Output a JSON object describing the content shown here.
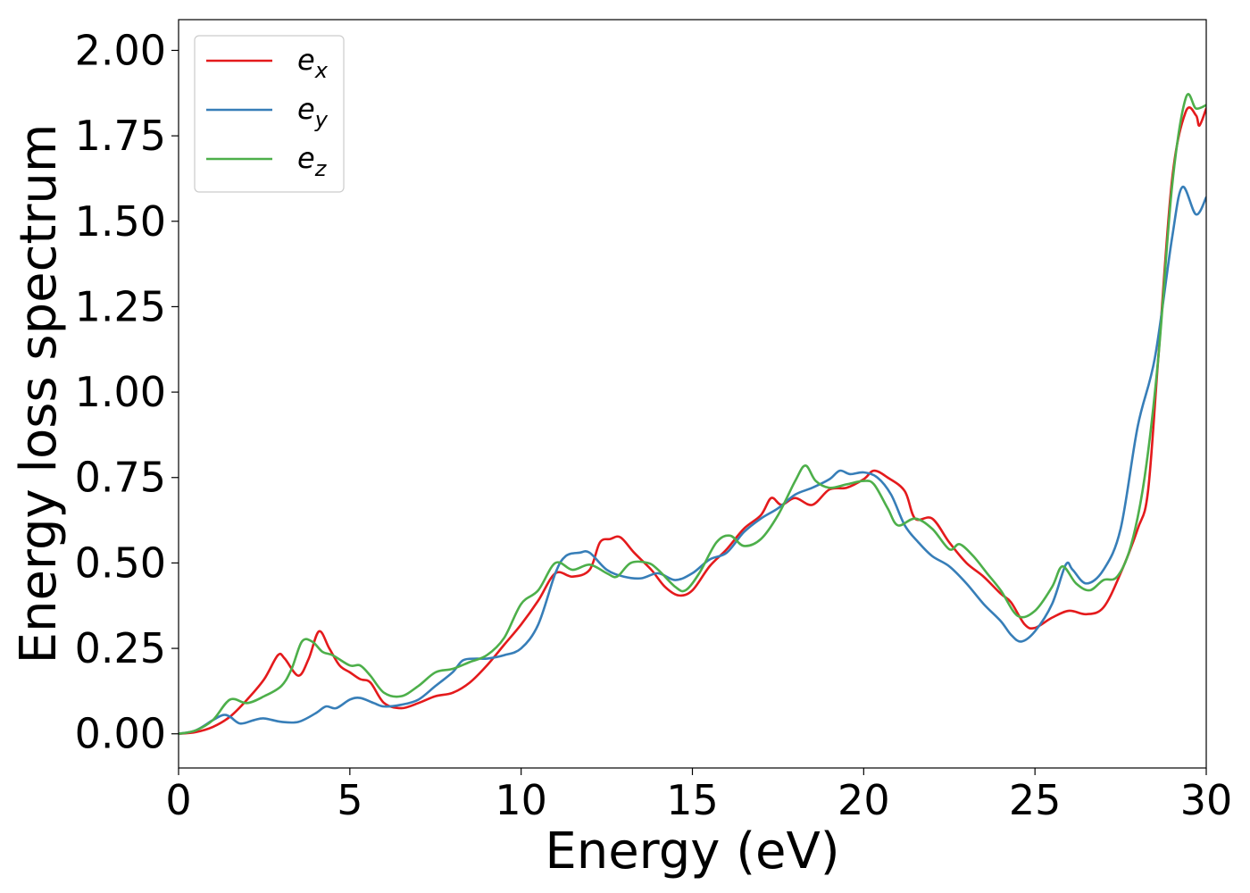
{
  "chart_data": {
    "type": "line",
    "title": "",
    "xlabel": "Energy (eV)",
    "ylabel": "Energy loss spectrum",
    "xlim": [
      0,
      30
    ],
    "ylim": [
      -0.1,
      2.09
    ],
    "xticks": [
      0,
      5,
      10,
      15,
      20,
      25,
      30
    ],
    "xtick_labels": [
      "0",
      "5",
      "10",
      "15",
      "20",
      "25",
      "30"
    ],
    "yticks": [
      0.0,
      0.25,
      0.5,
      0.75,
      1.0,
      1.25,
      1.5,
      1.75,
      2.0
    ],
    "ytick_labels": [
      "0.00",
      "0.25",
      "0.50",
      "0.75",
      "1.00",
      "1.25",
      "1.50",
      "1.75",
      "2.00"
    ],
    "grid": false,
    "legend_position": "top-left",
    "series": [
      {
        "name": "e_x",
        "base": "e",
        "sub": "x",
        "color": "#e41a1c",
        "points": [
          [
            0,
            0
          ],
          [
            0.5,
            0.005
          ],
          [
            1,
            0.02
          ],
          [
            1.5,
            0.05
          ],
          [
            2,
            0.1
          ],
          [
            2.5,
            0.16
          ],
          [
            2.9,
            0.23
          ],
          [
            3.1,
            0.22
          ],
          [
            3.5,
            0.17
          ],
          [
            3.8,
            0.22
          ],
          [
            4.1,
            0.3
          ],
          [
            4.4,
            0.25
          ],
          [
            4.7,
            0.2
          ],
          [
            5,
            0.18
          ],
          [
            5.3,
            0.16
          ],
          [
            5.6,
            0.15
          ],
          [
            6,
            0.09
          ],
          [
            6.5,
            0.075
          ],
          [
            7,
            0.09
          ],
          [
            7.5,
            0.11
          ],
          [
            8,
            0.12
          ],
          [
            8.5,
            0.15
          ],
          [
            9,
            0.2
          ],
          [
            9.5,
            0.26
          ],
          [
            10,
            0.32
          ],
          [
            10.5,
            0.39
          ],
          [
            11,
            0.47
          ],
          [
            11.5,
            0.46
          ],
          [
            12,
            0.48
          ],
          [
            12.3,
            0.56
          ],
          [
            12.6,
            0.57
          ],
          [
            12.9,
            0.575
          ],
          [
            13.3,
            0.53
          ],
          [
            13.8,
            0.48
          ],
          [
            14.2,
            0.43
          ],
          [
            14.6,
            0.405
          ],
          [
            15,
            0.42
          ],
          [
            15.5,
            0.49
          ],
          [
            16,
            0.54
          ],
          [
            16.5,
            0.6
          ],
          [
            17,
            0.64
          ],
          [
            17.3,
            0.69
          ],
          [
            17.6,
            0.67
          ],
          [
            18,
            0.69
          ],
          [
            18.5,
            0.67
          ],
          [
            19,
            0.715
          ],
          [
            19.5,
            0.72
          ],
          [
            20,
            0.745
          ],
          [
            20.3,
            0.77
          ],
          [
            20.7,
            0.75
          ],
          [
            21.2,
            0.71
          ],
          [
            21.5,
            0.63
          ],
          [
            22,
            0.63
          ],
          [
            22.5,
            0.56
          ],
          [
            23,
            0.5
          ],
          [
            23.5,
            0.46
          ],
          [
            24,
            0.41
          ],
          [
            24.3,
            0.385
          ],
          [
            24.7,
            0.32
          ],
          [
            25,
            0.31
          ],
          [
            25.5,
            0.34
          ],
          [
            26,
            0.36
          ],
          [
            26.5,
            0.35
          ],
          [
            27,
            0.37
          ],
          [
            27.5,
            0.47
          ],
          [
            28,
            0.6
          ],
          [
            28.3,
            0.71
          ],
          [
            28.6,
            1.1
          ],
          [
            29,
            1.62
          ],
          [
            29.4,
            1.82
          ],
          [
            29.7,
            1.81
          ],
          [
            29.8,
            1.78
          ],
          [
            30,
            1.83
          ]
        ]
      },
      {
        "name": "e_y",
        "base": "e",
        "sub": "y",
        "color": "#377eb8",
        "points": [
          [
            0,
            0
          ],
          [
            0.5,
            0.01
          ],
          [
            1,
            0.04
          ],
          [
            1.3,
            0.055
          ],
          [
            1.5,
            0.05
          ],
          [
            1.8,
            0.03
          ],
          [
            2.2,
            0.04
          ],
          [
            2.5,
            0.045
          ],
          [
            3,
            0.035
          ],
          [
            3.5,
            0.035
          ],
          [
            4,
            0.06
          ],
          [
            4.3,
            0.08
          ],
          [
            4.6,
            0.075
          ],
          [
            5,
            0.1
          ],
          [
            5.3,
            0.105
          ],
          [
            5.7,
            0.09
          ],
          [
            6,
            0.08
          ],
          [
            6.5,
            0.085
          ],
          [
            7,
            0.1
          ],
          [
            7.5,
            0.14
          ],
          [
            8,
            0.18
          ],
          [
            8.3,
            0.215
          ],
          [
            8.7,
            0.22
          ],
          [
            9,
            0.22
          ],
          [
            9.5,
            0.23
          ],
          [
            10,
            0.25
          ],
          [
            10.5,
            0.32
          ],
          [
            11,
            0.47
          ],
          [
            11.3,
            0.52
          ],
          [
            11.7,
            0.53
          ],
          [
            12,
            0.53
          ],
          [
            12.5,
            0.48
          ],
          [
            13,
            0.46
          ],
          [
            13.5,
            0.455
          ],
          [
            14,
            0.47
          ],
          [
            14.5,
            0.45
          ],
          [
            15,
            0.47
          ],
          [
            15.5,
            0.51
          ],
          [
            16,
            0.53
          ],
          [
            16.5,
            0.59
          ],
          [
            17,
            0.63
          ],
          [
            17.5,
            0.66
          ],
          [
            18,
            0.7
          ],
          [
            18.5,
            0.72
          ],
          [
            19,
            0.745
          ],
          [
            19.3,
            0.77
          ],
          [
            19.6,
            0.76
          ],
          [
            20,
            0.765
          ],
          [
            20.4,
            0.75
          ],
          [
            20.8,
            0.7
          ],
          [
            21.2,
            0.61
          ],
          [
            21.6,
            0.56
          ],
          [
            22,
            0.52
          ],
          [
            22.5,
            0.49
          ],
          [
            23,
            0.44
          ],
          [
            23.5,
            0.38
          ],
          [
            24,
            0.33
          ],
          [
            24.3,
            0.29
          ],
          [
            24.6,
            0.27
          ],
          [
            25,
            0.3
          ],
          [
            25.5,
            0.38
          ],
          [
            25.9,
            0.495
          ],
          [
            26.1,
            0.48
          ],
          [
            26.5,
            0.44
          ],
          [
            27,
            0.48
          ],
          [
            27.5,
            0.6
          ],
          [
            28,
            0.9
          ],
          [
            28.5,
            1.1
          ],
          [
            29,
            1.45
          ],
          [
            29.3,
            1.6
          ],
          [
            29.7,
            1.52
          ],
          [
            30,
            1.57
          ]
        ]
      },
      {
        "name": "e_z",
        "base": "e",
        "sub": "z",
        "color": "#4daf4a",
        "points": [
          [
            0,
            0
          ],
          [
            0.5,
            0.01
          ],
          [
            1,
            0.04
          ],
          [
            1.5,
            0.1
          ],
          [
            2,
            0.09
          ],
          [
            2.5,
            0.11
          ],
          [
            3,
            0.14
          ],
          [
            3.3,
            0.19
          ],
          [
            3.6,
            0.27
          ],
          [
            3.9,
            0.27
          ],
          [
            4.2,
            0.24
          ],
          [
            4.5,
            0.23
          ],
          [
            5,
            0.2
          ],
          [
            5.3,
            0.2
          ],
          [
            5.6,
            0.17
          ],
          [
            6,
            0.12
          ],
          [
            6.5,
            0.11
          ],
          [
            7,
            0.14
          ],
          [
            7.5,
            0.18
          ],
          [
            8,
            0.19
          ],
          [
            8.5,
            0.21
          ],
          [
            9,
            0.23
          ],
          [
            9.5,
            0.28
          ],
          [
            10,
            0.38
          ],
          [
            10.5,
            0.42
          ],
          [
            11,
            0.5
          ],
          [
            11.5,
            0.48
          ],
          [
            12,
            0.495
          ],
          [
            12.5,
            0.47
          ],
          [
            12.8,
            0.46
          ],
          [
            13.2,
            0.5
          ],
          [
            13.7,
            0.5
          ],
          [
            14,
            0.48
          ],
          [
            14.5,
            0.43
          ],
          [
            14.8,
            0.42
          ],
          [
            15.2,
            0.47
          ],
          [
            15.7,
            0.56
          ],
          [
            16.1,
            0.58
          ],
          [
            16.5,
            0.55
          ],
          [
            17,
            0.57
          ],
          [
            17.5,
            0.64
          ],
          [
            18,
            0.74
          ],
          [
            18.3,
            0.785
          ],
          [
            18.6,
            0.74
          ],
          [
            19,
            0.72
          ],
          [
            19.5,
            0.73
          ],
          [
            20,
            0.74
          ],
          [
            20.3,
            0.73
          ],
          [
            20.7,
            0.66
          ],
          [
            21,
            0.61
          ],
          [
            21.5,
            0.63
          ],
          [
            22,
            0.6
          ],
          [
            22.5,
            0.54
          ],
          [
            22.8,
            0.555
          ],
          [
            23.2,
            0.52
          ],
          [
            23.6,
            0.47
          ],
          [
            24,
            0.42
          ],
          [
            24.5,
            0.345
          ],
          [
            25,
            0.36
          ],
          [
            25.5,
            0.43
          ],
          [
            25.8,
            0.49
          ],
          [
            26.2,
            0.44
          ],
          [
            26.6,
            0.42
          ],
          [
            27,
            0.45
          ],
          [
            27.4,
            0.46
          ],
          [
            27.8,
            0.55
          ],
          [
            28.2,
            0.75
          ],
          [
            28.6,
            1.1
          ],
          [
            29,
            1.6
          ],
          [
            29.4,
            1.86
          ],
          [
            29.7,
            1.83
          ],
          [
            30,
            1.84
          ]
        ]
      }
    ]
  }
}
